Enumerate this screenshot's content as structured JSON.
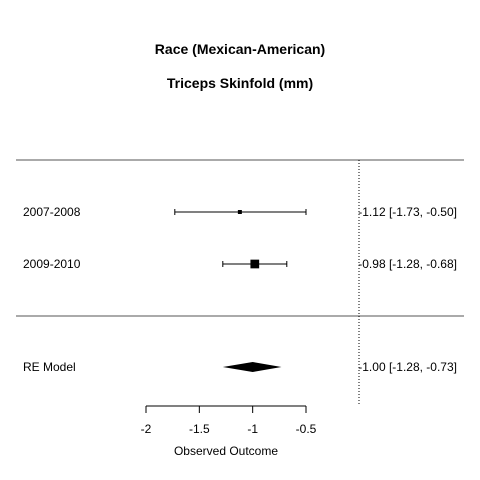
{
  "chart_data": {
    "type": "forest",
    "title": "Race (Mexican-American)",
    "subtitle": "Triceps Skinfold (mm)",
    "xlabel": "Observed Outcome",
    "xlim": [
      -2,
      -0.5
    ],
    "x_ticks": [
      -2,
      -1.5,
      -1,
      -0.5
    ],
    "x_tick_labels": [
      "-2",
      "-1.5",
      "-1",
      "-0.5"
    ],
    "reference_line": 0,
    "studies": [
      {
        "label": "2007-2008",
        "estimate": -1.12,
        "ci_low": -1.73,
        "ci_high": -0.5,
        "text": "-1.12 [-1.73, -0.50]",
        "weight": 0.08
      },
      {
        "label": "2009-2010",
        "estimate": -0.98,
        "ci_low": -1.28,
        "ci_high": -0.68,
        "text": "-0.98 [-1.28, -0.68]",
        "weight": 0.92
      }
    ],
    "summary": {
      "label": "RE Model",
      "estimate": -1.0,
      "ci_low": -1.28,
      "ci_high": -0.73,
      "text": "-1.00 [-1.28, -0.73]"
    }
  }
}
